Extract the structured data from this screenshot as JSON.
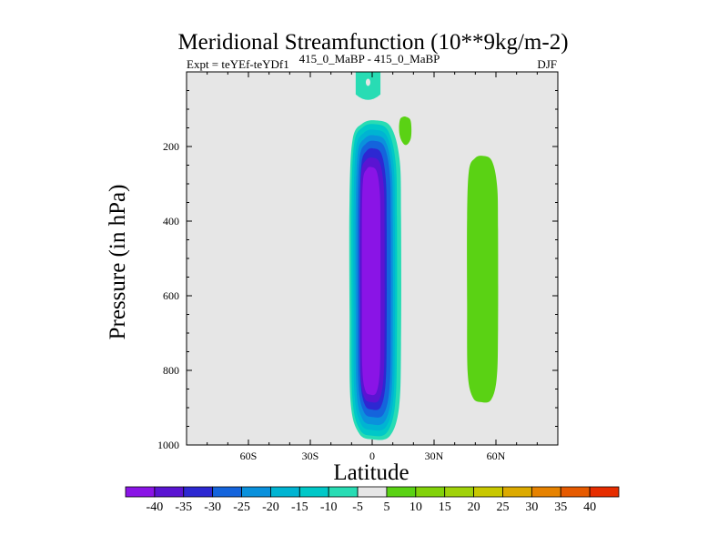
{
  "chart_data": {
    "type": "filled-contour",
    "title": "Meridional Streamfunction (10**9kg/m-2)",
    "subtitle_left": "Expt = teYEf-teYDf1",
    "subtitle_center": "415_0_MaBP - 415_0_MaBP",
    "subtitle_right": "DJF",
    "xlabel": "Latitude",
    "ylabel": "Pressure (in hPa)",
    "xlim": [
      -90,
      90
    ],
    "ylim": [
      1000,
      0
    ],
    "x_ticks": [
      {
        "value": -60,
        "label": "60S"
      },
      {
        "value": -30,
        "label": "30S"
      },
      {
        "value": 0,
        "label": "0"
      },
      {
        "value": 30,
        "label": "30N"
      },
      {
        "value": 60,
        "label": "60N"
      }
    ],
    "y_ticks": [
      {
        "value": 200,
        "label": "200"
      },
      {
        "value": 400,
        "label": "400"
      },
      {
        "value": 600,
        "label": "600"
      },
      {
        "value": 800,
        "label": "800"
      },
      {
        "value": 1000,
        "label": "1000"
      }
    ],
    "colorbar": {
      "labels": [
        "-40",
        "-35",
        "-30",
        "-25",
        "-20",
        "-15",
        "-10",
        "-5",
        "5",
        "10",
        "15",
        "20",
        "25",
        "30",
        "35",
        "40"
      ],
      "colors": [
        "#8a14e6",
        "#5a14d2",
        "#2d28d2",
        "#1464dc",
        "#0a91dc",
        "#00b4d2",
        "#00c8c8",
        "#28dcb4",
        "#e6e6e6",
        "#5ad214",
        "#82d20a",
        "#a0d20a",
        "#c8c800",
        "#dcaa00",
        "#e68200",
        "#e65a00",
        "#e62d00"
      ]
    },
    "series": [
      {
        "name": "southern_cell",
        "min_value": -40,
        "center_lat": 0,
        "pressure_range": [
          130,
          985
        ],
        "levels": [
          {
            "value": -5,
            "color": "#28dcb4",
            "lat_range": [
              -11,
              14
            ],
            "p_range": [
              130,
              985
            ]
          },
          {
            "value": -10,
            "color": "#00c8c8",
            "lat_range": [
              -10,
              12
            ],
            "p_range": [
              140,
              975
            ]
          },
          {
            "value": -15,
            "color": "#00b4d2",
            "lat_range": [
              -9,
              11
            ],
            "p_range": [
              155,
              960
            ]
          },
          {
            "value": -20,
            "color": "#0a91dc",
            "lat_range": [
              -8,
              10
            ],
            "p_range": [
              170,
              945
            ]
          },
          {
            "value": -25,
            "color": "#1464dc",
            "lat_range": [
              -7,
              9
            ],
            "p_range": [
              185,
              925
            ]
          },
          {
            "value": -30,
            "color": "#2d28d2",
            "lat_range": [
              -6,
              7
            ],
            "p_range": [
              205,
              905
            ]
          },
          {
            "value": -35,
            "color": "#5a14d2",
            "lat_range": [
              -6,
              6
            ],
            "p_range": [
              230,
              885
            ]
          },
          {
            "value": -40,
            "color": "#8a14e6",
            "lat_range": [
              -5,
              4
            ],
            "p_range": [
              255,
              865
            ]
          }
        ]
      },
      {
        "name": "upper_positive_blob",
        "value": 10,
        "color": "#5ad214",
        "lat_range": [
          13,
          19
        ],
        "p_range": [
          120,
          195
        ]
      },
      {
        "name": "northern_cell",
        "value": 10,
        "color": "#5ad214",
        "lat_range": [
          46,
          61
        ],
        "p_range": [
          225,
          885
        ]
      },
      {
        "name": "top_cyan_patch",
        "value": -5,
        "color": "#28dcb4",
        "lat_range": [
          -8,
          4
        ],
        "p_range": [
          0,
          75
        ]
      }
    ]
  }
}
